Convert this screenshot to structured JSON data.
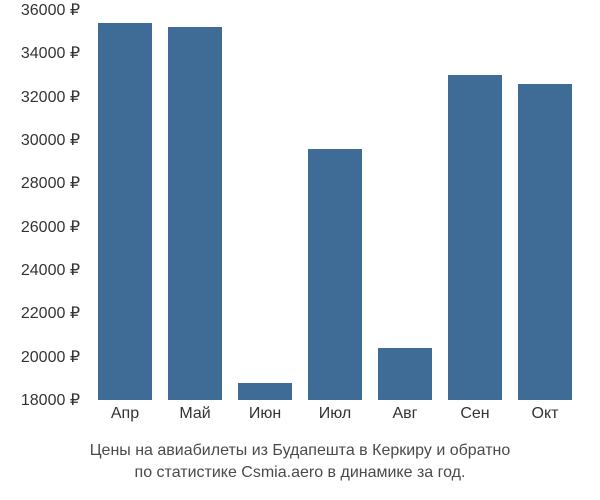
{
  "chart": {
    "type": "bar",
    "categories": [
      "Апр",
      "Май",
      "Июн",
      "Июл",
      "Авг",
      "Сен",
      "Окт"
    ],
    "values": [
      35400,
      35200,
      18800,
      29600,
      20400,
      33000,
      32600
    ],
    "bar_color": "#3e6c96",
    "background_color": "#ffffff",
    "text_color": "#333333",
    "caption_color": "#4a4a4a",
    "ylim": [
      18000,
      36000
    ],
    "ytick_step": 2000,
    "ytick_labels": [
      "18000 ₽",
      "20000 ₽",
      "22000 ₽",
      "24000 ₽",
      "26000 ₽",
      "28000 ₽",
      "30000 ₽",
      "32000 ₽",
      "34000 ₽",
      "36000 ₽"
    ],
    "ytick_values": [
      18000,
      20000,
      22000,
      24000,
      26000,
      28000,
      30000,
      32000,
      34000,
      36000
    ],
    "bar_width_ratio": 0.78,
    "label_fontsize": 16,
    "caption_fontsize": 16,
    "axis_visible": false,
    "grid_visible": false
  },
  "caption": {
    "line1": "Цены на авиабилеты из Будапешта в Керкиру и обратно",
    "line2": "по статистике Csmia.aero в динамике за год."
  }
}
